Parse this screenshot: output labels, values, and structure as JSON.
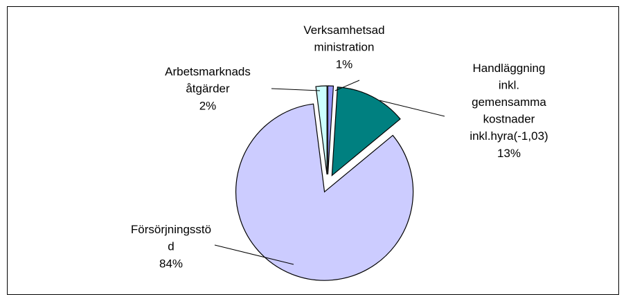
{
  "chart_data": {
    "type": "pie",
    "categories": [
      "Verksamhetsad\nministration",
      "Handläggning\ninkl.\ngemensamma\nkostnader\ninkl.hyra(-1,03)",
      "Försörjningsstö\nd",
      "Arbetsmarknads\nåtgärder"
    ],
    "values": [
      1,
      13,
      84,
      2
    ],
    "value_labels": [
      "1%",
      "13%",
      "84%",
      "2%"
    ],
    "colors": [
      "#9999ff",
      "#008080",
      "#ccccff",
      "#ccffff"
    ]
  }
}
